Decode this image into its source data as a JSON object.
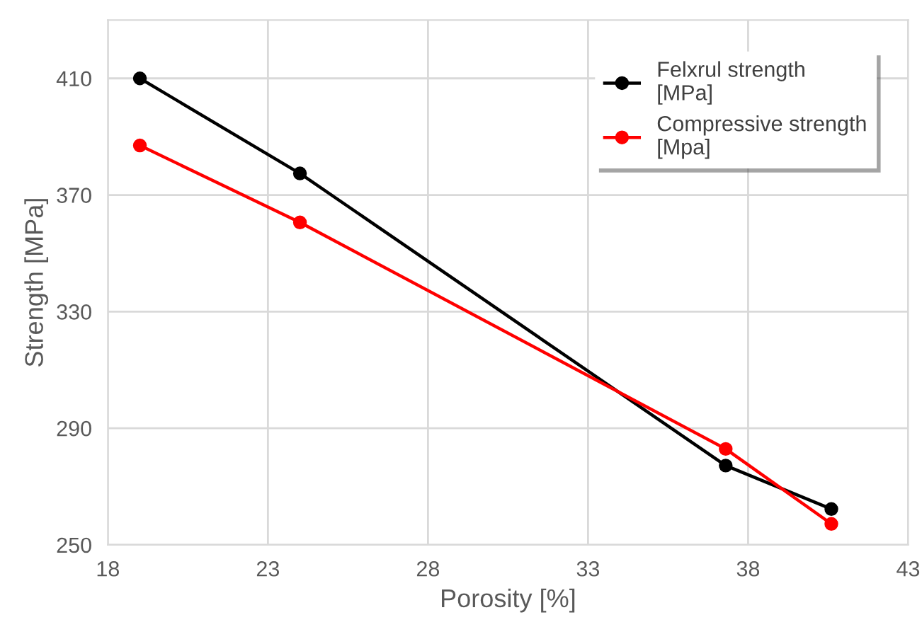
{
  "chart_data": {
    "type": "line",
    "xlabel": "Porosity [%]",
    "ylabel": "Strength [MPa]",
    "x": [
      19.0,
      24.0,
      37.3,
      40.6
    ],
    "series": [
      {
        "name": "Felxrul strength\n[MPa]",
        "color": "#000000",
        "values": [
          410,
          377.4,
          277.2,
          262.3
        ]
      },
      {
        "name": "Compressive strength\n[Mpa]",
        "color": "#ff0000",
        "values": [
          387,
          360.6,
          282.9,
          257.2
        ]
      }
    ],
    "xlim": [
      18,
      43
    ],
    "xticks": [
      18,
      23,
      28,
      33,
      38,
      43
    ],
    "ylim": [
      250,
      430
    ],
    "yticks": [
      250,
      290,
      330,
      370,
      410
    ],
    "grid": true,
    "legend": "top right",
    "marker": "circle",
    "line_style": "solid"
  }
}
